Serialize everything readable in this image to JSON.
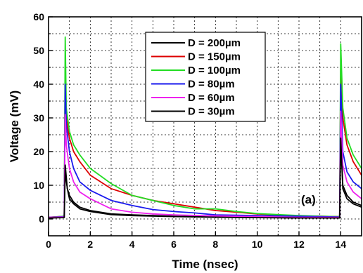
{
  "chart_data": {
    "type": "line",
    "xlabel": "Time (nsec)",
    "ylabel": "Voltage (mV)",
    "xlim": [
      0,
      15
    ],
    "ylim": [
      -5,
      60
    ],
    "xticks": [
      0,
      2,
      4,
      6,
      8,
      10,
      12,
      14
    ],
    "yticks": [
      0,
      10,
      20,
      30,
      40,
      50,
      60
    ],
    "grid": true,
    "legend_position": "top-center",
    "annotation": "(a)",
    "series": [
      {
        "name": "D = 200µm",
        "color": "#000000",
        "x": [
          0,
          0.75,
          0.8,
          0.9,
          1.0,
          1.2,
          1.5,
          2.0,
          3.0,
          4.0,
          6.0,
          8.0,
          10.0,
          12.0,
          13.95,
          14.0,
          14.1,
          14.3,
          14.6,
          15.0
        ],
        "y": [
          0.3,
          0.5,
          14,
          9,
          7,
          5,
          3.5,
          2.5,
          1.5,
          1.2,
          0.8,
          0.6,
          0.5,
          0.3,
          0.3,
          25,
          10,
          7,
          5,
          4
        ]
      },
      {
        "name": "D = 150µm",
        "color": "#dd0000",
        "x": [
          0,
          0.75,
          0.8,
          0.85,
          1.0,
          1.2,
          1.5,
          2.0,
          3.0,
          4.0,
          5.0,
          6.0,
          7.0,
          8.0,
          9.0,
          10.0,
          11.0,
          12.0,
          13.0,
          13.95,
          14.0,
          14.1,
          14.3,
          14.6,
          15.0
        ],
        "y": [
          0.5,
          0.8,
          45,
          30,
          24,
          20,
          17,
          13,
          9,
          7,
          5.5,
          4.5,
          3.5,
          2.5,
          2,
          1.5,
          1.2,
          0.9,
          0.8,
          0.7,
          45,
          30,
          22,
          17,
          13
        ]
      },
      {
        "name": "D = 100µm",
        "color": "#22dd22",
        "x": [
          0,
          0.75,
          0.8,
          0.85,
          1.0,
          1.2,
          1.5,
          2.0,
          3.0,
          4.0,
          5.0,
          6.0,
          7.0,
          8.0,
          9.0,
          10.0,
          11.0,
          12.0,
          13.0,
          13.95,
          14.0,
          14.1,
          14.3,
          14.6,
          15.0
        ],
        "y": [
          0.5,
          0.8,
          54,
          33,
          26,
          22,
          19,
          15,
          10.5,
          7,
          5.5,
          4,
          3,
          3,
          2.2,
          1.6,
          1.3,
          1,
          0.8,
          0.7,
          52,
          33,
          24,
          19,
          15
        ]
      },
      {
        "name": "D = 80µm",
        "color": "#1a1aee",
        "x": [
          0,
          0.75,
          0.8,
          0.85,
          1.0,
          1.2,
          1.5,
          2.0,
          3.0,
          4.0,
          5.0,
          6.0,
          7.0,
          8.0,
          10.0,
          12.0,
          13.95,
          14.0,
          14.1,
          14.3,
          14.6,
          15.0
        ],
        "y": [
          0.5,
          0.7,
          40,
          28,
          20,
          15,
          11,
          8.5,
          5.5,
          4,
          2.8,
          2.2,
          1.8,
          1.2,
          1.0,
          0.8,
          0.6,
          40,
          20,
          14,
          11,
          9
        ]
      },
      {
        "name": "D = 60µm",
        "color": "#ee22ee",
        "x": [
          0,
          0.75,
          0.8,
          0.85,
          1.0,
          1.2,
          1.5,
          2.0,
          3.0,
          4.0,
          5.0,
          6.0,
          8.0,
          10.0,
          12.0,
          13.95,
          14.0,
          14.1,
          14.3,
          14.6,
          15.0
        ],
        "y": [
          0.5,
          0.6,
          31,
          22,
          15,
          11,
          8,
          6,
          3,
          2,
          1.5,
          1.2,
          0.9,
          0.7,
          0.5,
          0.5,
          32,
          16,
          11,
          8,
          6
        ]
      },
      {
        "name": "D = 30µm",
        "color": "#000000",
        "x": [
          0,
          0.75,
          0.8,
          0.9,
          1.0,
          1.2,
          1.5,
          2.0,
          3.0,
          4.0,
          6.0,
          8.0,
          10.0,
          12.0,
          13.95,
          14.0,
          14.1,
          14.3,
          14.6,
          15.0
        ],
        "y": [
          0.3,
          0.4,
          16,
          9,
          6,
          4.5,
          3,
          2.2,
          1.3,
          1.0,
          0.7,
          0.5,
          0.4,
          0.3,
          0.3,
          24,
          9,
          6,
          4.5,
          3.5
        ]
      }
    ]
  }
}
